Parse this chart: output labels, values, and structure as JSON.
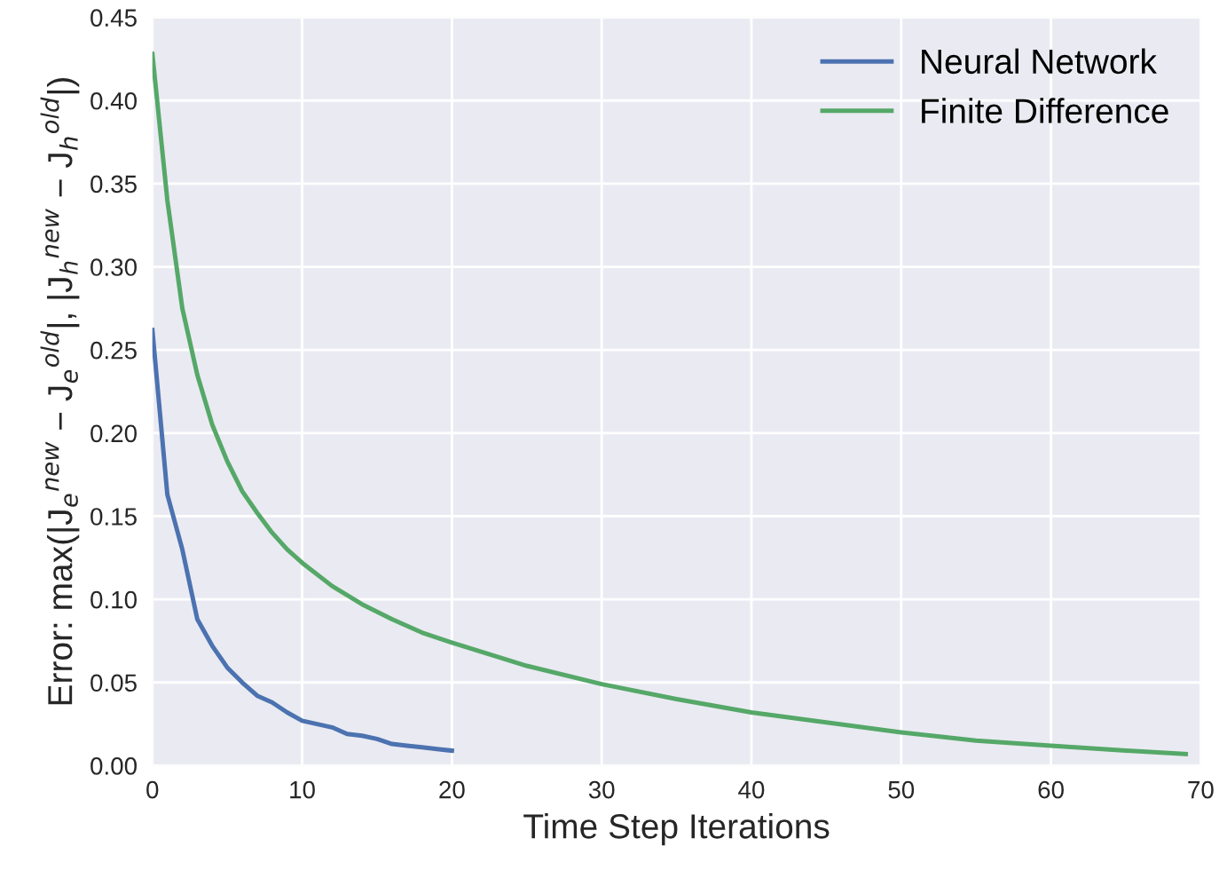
{
  "chart_data": {
    "type": "line",
    "xlabel": "Time Step Iterations",
    "ylabel": "Error: max(|J$_{e}$$^{new}$ − J$_{e}$$^{old}$|, |J$_{h}$$^{new}$ − J$_{h}$$^{old}$|)",
    "xlim": [
      0,
      70
    ],
    "ylim": [
      0,
      0.45
    ],
    "xticks": [
      0,
      10,
      20,
      30,
      40,
      50,
      60,
      70
    ],
    "yticks": [
      {
        "value": 0,
        "label": "0.00"
      },
      {
        "value": 0.05,
        "label": "0.05"
      },
      {
        "value": 0.1,
        "label": "0.10"
      },
      {
        "value": 0.15,
        "label": "0.15"
      },
      {
        "value": 0.2,
        "label": "0.20"
      },
      {
        "value": 0.25,
        "label": "0.25"
      },
      {
        "value": 0.3,
        "label": "0.30"
      },
      {
        "value": 0.35,
        "label": "0.35"
      },
      {
        "value": 0.4,
        "label": "0.40"
      },
      {
        "value": 0.45,
        "label": "0.45"
      }
    ],
    "grid": true,
    "legend": "top right",
    "line_style": "solid",
    "series": [
      {
        "name": "Neural Network",
        "color": "#4c72b0",
        "x": [
          0,
          1,
          2,
          3,
          4,
          5,
          6,
          7,
          8,
          9,
          10,
          11,
          12,
          13,
          14,
          15,
          16,
          17,
          18,
          19,
          20
        ],
        "values": [
          0.262,
          0.163,
          0.13,
          0.088,
          0.072,
          0.059,
          0.05,
          0.042,
          0.038,
          0.032,
          0.027,
          0.025,
          0.023,
          0.019,
          0.018,
          0.016,
          0.013,
          0.012,
          0.011,
          0.01,
          0.009
        ]
      },
      {
        "name": "Finite Difference",
        "color": "#55a868",
        "x": [
          0,
          1,
          2,
          3,
          4,
          5,
          6,
          7,
          8,
          9,
          10,
          12,
          14,
          16,
          18,
          20,
          25,
          30,
          35,
          40,
          45,
          50,
          55,
          60,
          65,
          69
        ],
        "values": [
          0.428,
          0.34,
          0.275,
          0.235,
          0.205,
          0.183,
          0.165,
          0.152,
          0.14,
          0.13,
          0.122,
          0.108,
          0.097,
          0.088,
          0.08,
          0.074,
          0.06,
          0.049,
          0.04,
          0.032,
          0.026,
          0.02,
          0.015,
          0.012,
          0.009,
          0.007
        ]
      }
    ]
  }
}
